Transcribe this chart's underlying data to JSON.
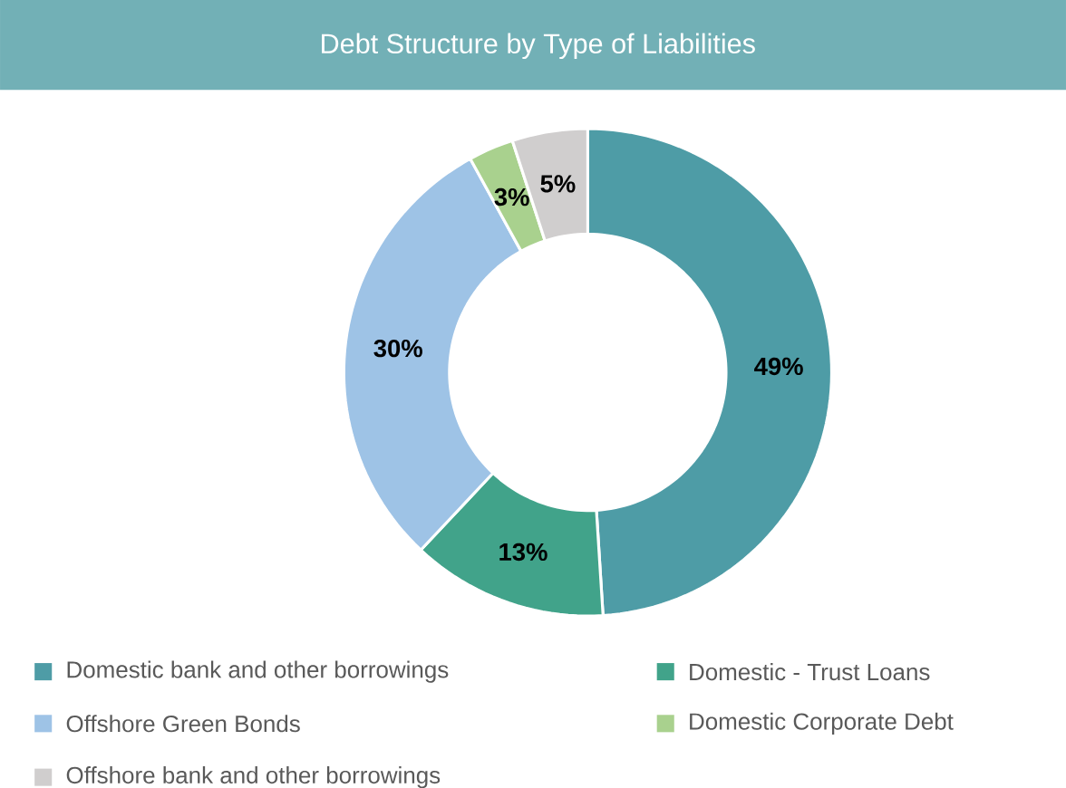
{
  "chart_data": {
    "type": "donut",
    "title": "Debt Structure by Type of Liabilities",
    "categories": [
      "Domestic bank and other borrowings",
      "Domestic - Trust Loans",
      "Offshore Green Bonds",
      "Domestic Corporate Debt",
      "Offshore bank and other borrowings"
    ],
    "values": [
      49,
      13,
      30,
      3,
      5
    ],
    "colors": [
      "#4e9ca6",
      "#41a38a",
      "#9ec3e6",
      "#a9d18e",
      "#d0cece"
    ],
    "value_labels": [
      "49%",
      "13%",
      "30%",
      "3%",
      "5%"
    ],
    "legend": "bottom"
  }
}
